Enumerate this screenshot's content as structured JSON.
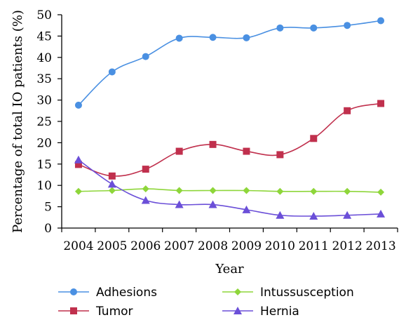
{
  "chart_data": {
    "type": "line",
    "xlabel": "Year",
    "ylabel": "Percentage of total IO patients (%)",
    "categories": [
      "2004",
      "2005",
      "2006",
      "2007",
      "2008",
      "2009",
      "2010",
      "2011",
      "2012",
      "2013"
    ],
    "ylim": [
      0,
      50
    ],
    "yticks": [
      0,
      5,
      10,
      15,
      20,
      25,
      30,
      35,
      40,
      45,
      50
    ],
    "grid": false,
    "legend": "bottom",
    "series": [
      {
        "name": "Adhesions",
        "color": "#4a90e2",
        "marker": "circle",
        "values": [
          28.8,
          36.6,
          40.2,
          44.5,
          44.7,
          44.6,
          46.9,
          46.9,
          47.5,
          48.6
        ]
      },
      {
        "name": "Tumor",
        "color": "#c0304d",
        "marker": "square",
        "values": [
          14.9,
          12.2,
          13.8,
          18.0,
          19.6,
          18.0,
          17.2,
          21.0,
          27.5,
          29.2
        ]
      },
      {
        "name": "Intussusception",
        "color": "#8ed63a",
        "marker": "diamond",
        "values": [
          8.6,
          8.8,
          9.2,
          8.8,
          8.8,
          8.8,
          8.6,
          8.6,
          8.6,
          8.4
        ]
      },
      {
        "name": "Hernia",
        "color": "#6b4fd8",
        "marker": "triangle",
        "values": [
          16.0,
          10.3,
          6.5,
          5.5,
          5.5,
          4.3,
          3.0,
          2.8,
          3.0,
          3.3
        ]
      }
    ]
  }
}
